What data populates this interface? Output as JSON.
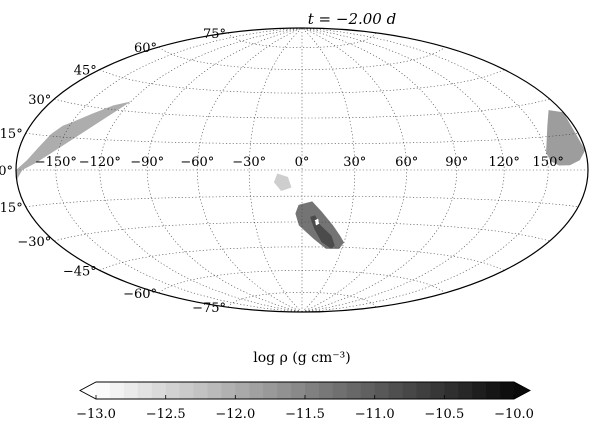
{
  "chart_data": {
    "type": "heatmap",
    "projection": "Hammer-Aitoff (all-sky)",
    "title": "t = −2.00 d",
    "colorbar_label": "log ρ (g cm⁻³)",
    "colorbar_range": [
      -13.0,
      -10.0
    ],
    "colorbar_ticks": [
      "−13.0",
      "−12.5",
      "−12.0",
      "−11.5",
      "−11.0",
      "−10.5",
      "−10.0"
    ],
    "colormap": "white-to-black (grayscale), extended both ends",
    "longitude_ticks": [
      {
        "value": -150,
        "label": "−150°"
      },
      {
        "value": -120,
        "label": "−120°"
      },
      {
        "value": -90,
        "label": "−90°"
      },
      {
        "value": -60,
        "label": "−60°"
      },
      {
        "value": -30,
        "label": "−30°"
      },
      {
        "value": 0,
        "label": "0°"
      },
      {
        "value": 30,
        "label": "30°"
      },
      {
        "value": 60,
        "label": "60°"
      },
      {
        "value": 90,
        "label": "90°"
      },
      {
        "value": 120,
        "label": "120°"
      },
      {
        "value": 150,
        "label": "150°"
      }
    ],
    "latitude_ticks": [
      {
        "value": 75,
        "label": "75°"
      },
      {
        "value": 60,
        "label": "60°"
      },
      {
        "value": 45,
        "label": "45°"
      },
      {
        "value": 30,
        "label": "30°"
      },
      {
        "value": 15,
        "label": "15°"
      },
      {
        "value": 0,
        "label": "0°"
      },
      {
        "value": -15,
        "label": "-15°"
      },
      {
        "value": -30,
        "label": "−30°"
      },
      {
        "value": -45,
        "label": "−45°"
      },
      {
        "value": -60,
        "label": "−60°"
      },
      {
        "value": -75,
        "label": "−75°"
      }
    ],
    "grid": true,
    "features": [
      {
        "lon": [
          -180,
          -172,
          -165,
          -160,
          -155,
          -150,
          -140,
          -130,
          -120,
          -150,
          -165,
          -175,
          -180
        ],
        "lat": [
          0,
          4,
          10,
          16,
          20,
          22,
          27,
          32,
          35,
          10,
          3,
          0,
          -4
        ],
        "value": -12.0
      },
      {
        "lon": [
          150,
          160,
          170,
          180,
          180,
          174,
          166,
          158,
          152
        ],
        "lat": [
          8,
          20,
          26,
          24,
          8,
          4,
          2,
          2,
          4
        ],
        "value": -11.8
      },
      {
        "lon": [
          -14,
          -8,
          -6,
          -12,
          -16
        ],
        "lat": [
          -2,
          -4,
          -10,
          -12,
          -7
        ],
        "value": -12.4
      },
      {
        "lon": [
          -2,
          6,
          12,
          20,
          26,
          30,
          28,
          18,
          8,
          -2,
          -4
        ],
        "lat": [
          -20,
          -18,
          -24,
          -32,
          -38,
          -42,
          -46,
          -46,
          -40,
          -32,
          -25
        ],
        "value": -11.3
      },
      {
        "lon": [
          5,
          8,
          12,
          20,
          24,
          22,
          14,
          8
        ],
        "lat": [
          -27,
          -26,
          -32,
          -38,
          -44,
          -46,
          -42,
          -34
        ],
        "value": -10.8
      },
      {
        "lon": [
          8,
          10,
          11,
          9
        ],
        "lat": [
          -29,
          -28,
          -31,
          -32
        ],
        "value": -13.0
      }
    ]
  }
}
